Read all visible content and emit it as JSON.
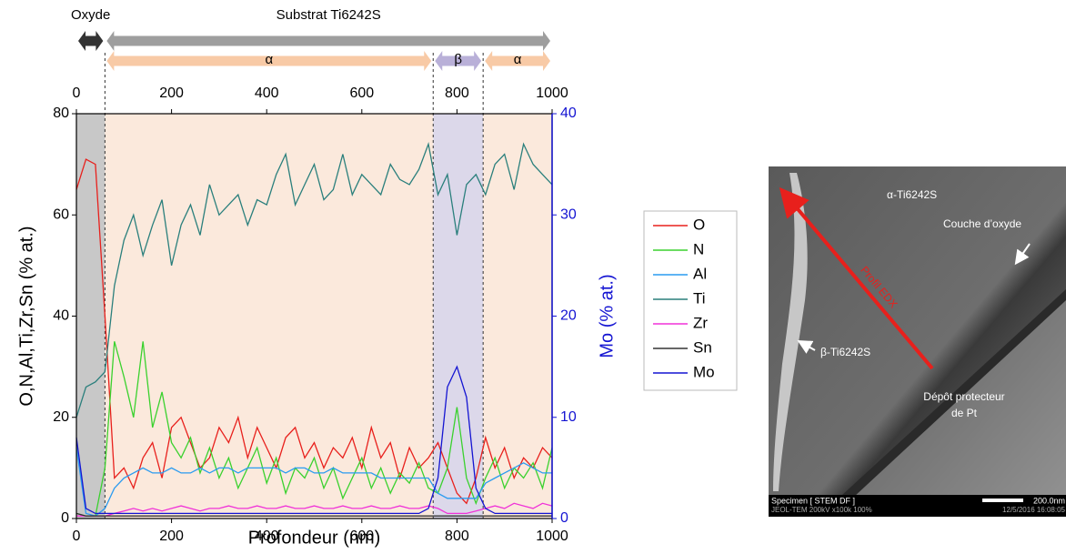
{
  "chart_data": {
    "type": "line",
    "x_label": "Profondeur (nm)",
    "y_label": "O,N,Al,Ti,Zr,Sn (% at.)",
    "y2_label": "Mo (% at.)",
    "xlim": [
      0,
      1000
    ],
    "xticks": [
      0,
      200,
      400,
      600,
      800,
      1000
    ],
    "ylim": [
      0,
      80
    ],
    "yticks": [
      0,
      20,
      40,
      60,
      80
    ],
    "y2lim": [
      0,
      40
    ],
    "y2ticks": [
      0,
      10,
      20,
      30,
      40
    ],
    "layers": [
      {
        "label": "Oxyde",
        "x": [
          0,
          60
        ],
        "color": "#333333",
        "shade": "#c8c8c8"
      },
      {
        "label": "Substrat Ti6242S",
        "x": [
          60,
          1000
        ],
        "color": "#9e9e9e"
      }
    ],
    "phases": [
      {
        "label": "α",
        "x": [
          60,
          750
        ],
        "color": "#f8caa6",
        "shade": "#fbe9dc"
      },
      {
        "label": "β",
        "x": [
          750,
          855
        ],
        "color": "#b9b0d8",
        "shade": "#dcd8ea"
      },
      {
        "label": "α",
        "x": [
          855,
          1000
        ],
        "color": "#f8caa6",
        "shade": "#fbe9dc"
      }
    ],
    "x": [
      0,
      20,
      40,
      60,
      80,
      100,
      120,
      140,
      160,
      180,
      200,
      220,
      240,
      260,
      280,
      300,
      320,
      340,
      360,
      380,
      400,
      420,
      440,
      460,
      480,
      500,
      520,
      540,
      560,
      580,
      600,
      620,
      640,
      660,
      680,
      700,
      720,
      740,
      760,
      780,
      800,
      820,
      840,
      860,
      880,
      900,
      920,
      940,
      960,
      980,
      1000
    ],
    "series": [
      {
        "name": "O",
        "color": "#e8201c",
        "values": [
          65,
          71,
          70,
          40,
          8,
          10,
          6,
          12,
          15,
          8,
          18,
          20,
          15,
          10,
          12,
          18,
          15,
          20,
          12,
          18,
          14,
          10,
          16,
          18,
          12,
          15,
          10,
          14,
          12,
          16,
          10,
          18,
          12,
          15,
          8,
          14,
          10,
          12,
          15,
          10,
          5,
          3,
          8,
          16,
          10,
          14,
          8,
          12,
          10,
          14,
          12
        ]
      },
      {
        "name": "N",
        "color": "#3ad12e",
        "values": [
          1,
          0.5,
          0.5,
          10,
          35,
          28,
          20,
          35,
          18,
          25,
          15,
          12,
          16,
          9,
          14,
          8,
          12,
          6,
          10,
          14,
          7,
          12,
          5,
          10,
          8,
          12,
          6,
          10,
          4,
          8,
          12,
          6,
          10,
          5,
          9,
          7,
          11,
          6,
          5,
          10,
          22,
          8,
          3,
          8,
          12,
          6,
          10,
          8,
          11,
          6,
          14
        ]
      },
      {
        "name": "Al",
        "color": "#2a9bf0",
        "values": [
          14,
          1,
          0.5,
          2,
          6,
          8,
          9,
          10,
          9,
          9,
          10,
          9,
          9,
          10,
          9,
          10,
          10,
          9,
          10,
          10,
          10,
          10,
          9,
          10,
          10,
          9,
          9,
          10,
          9,
          9,
          9,
          9,
          8,
          8,
          8,
          8,
          8,
          8,
          5,
          4,
          4,
          4,
          4,
          7,
          8,
          9,
          10,
          11,
          10,
          9,
          9
        ]
      },
      {
        "name": "Ti",
        "color": "#2a7f7c",
        "values": [
          20,
          26,
          27,
          29,
          46,
          55,
          60,
          52,
          58,
          63,
          50,
          58,
          62,
          56,
          66,
          60,
          62,
          64,
          58,
          63,
          62,
          68,
          72,
          62,
          66,
          70,
          63,
          65,
          72,
          64,
          68,
          66,
          64,
          70,
          67,
          66,
          69,
          74,
          64,
          68,
          56,
          66,
          68,
          64,
          70,
          72,
          65,
          74,
          70,
          68,
          66
        ]
      },
      {
        "name": "Zr",
        "color": "#f032d8",
        "values": [
          0.5,
          0.5,
          0.5,
          0.5,
          1,
          1.5,
          2,
          1.5,
          2,
          1.5,
          2,
          2.5,
          2,
          1.5,
          2,
          2,
          2.5,
          2,
          2,
          2.5,
          2,
          2,
          2.5,
          2,
          2,
          2.5,
          2,
          2,
          2.5,
          2,
          2,
          2.5,
          2,
          2,
          2.5,
          2,
          2,
          2.5,
          2,
          1,
          1,
          1,
          1.5,
          2,
          2.5,
          2,
          3,
          2.5,
          2,
          3,
          2.5
        ]
      },
      {
        "name": "Sn",
        "color": "#333333",
        "values": [
          1,
          0.5,
          0.5,
          0.5,
          0.5,
          0.5,
          0.5,
          0.5,
          0.5,
          0.5,
          0.5,
          0.5,
          0.5,
          0.5,
          0.5,
          0.5,
          0.5,
          0.5,
          0.5,
          0.5,
          0.5,
          0.5,
          0.5,
          0.5,
          0.5,
          0.5,
          0.5,
          0.5,
          0.5,
          0.5,
          0.5,
          0.5,
          0.5,
          0.5,
          0.5,
          0.5,
          0.5,
          0.5,
          0.5,
          0.5,
          0.5,
          0.5,
          0.5,
          0.5,
          0.5,
          0.5,
          0.5,
          0.5,
          0.5,
          0.5,
          0.5
        ]
      },
      {
        "name": "Mo",
        "color": "#1414d2",
        "axis": "y2",
        "values": [
          8,
          1,
          0.5,
          0.5,
          0.5,
          0.5,
          0.5,
          0.5,
          0.5,
          0.5,
          0.5,
          0.5,
          0.5,
          0.5,
          0.5,
          0.5,
          0.5,
          0.5,
          0.5,
          0.5,
          0.5,
          0.5,
          0.5,
          0.5,
          0.5,
          0.5,
          0.5,
          0.5,
          0.5,
          0.5,
          0.5,
          0.5,
          0.5,
          0.5,
          0.5,
          0.5,
          0.5,
          1,
          4,
          13,
          15,
          12,
          3,
          1,
          0.5,
          0.5,
          0.5,
          0.5,
          0.5,
          0.5,
          0.5
        ]
      }
    ]
  },
  "micrograph": {
    "phase_alpha": "α-Ti6242S",
    "oxide_layer": "Couche d’oxyde",
    "profile": "Profil EDX",
    "phase_beta": "β-Ti6242S",
    "deposit_line1": "Dépôt protecteur",
    "deposit_line2": "de Pt",
    "specimen": "Specimen [ STEM DF ]",
    "instrument": "JEOL-TEM 200kV x100k 100%",
    "scale": "200.0nm",
    "timestamp": "12/5/2016 16:08:05"
  }
}
